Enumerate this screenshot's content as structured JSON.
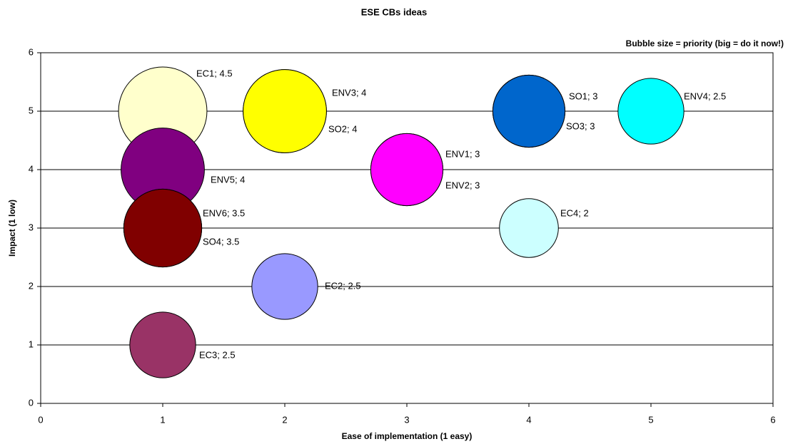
{
  "chart_data": {
    "type": "bubble",
    "title": "ESE CBs ideas",
    "annotation": "Bubble size = priority (big = do it now!)",
    "x_label": "Ease of implementation (1 easy)",
    "y_label": "Impact (1 low)",
    "xlim": [
      0,
      6
    ],
    "xticks": [
      0,
      1,
      2,
      3,
      4,
      5,
      6
    ],
    "ylim": [
      0,
      6
    ],
    "yticks": [
      0,
      1,
      2,
      3,
      4,
      5,
      6
    ],
    "grid": true,
    "series": [
      {
        "color": "#ffffcc",
        "x": [
          1
        ],
        "values": [
          5
        ],
        "sizes": [
          4.5
        ],
        "value_labels": [
          "EC1; 4.5"
        ]
      },
      {
        "color": "#ffff00",
        "x": [
          2
        ],
        "values": [
          5
        ],
        "sizes": [
          4
        ],
        "value_labels": [
          "SO2; 4"
        ]
      },
      {
        "color": "#ffff00",
        "x": [
          2
        ],
        "values": [
          5
        ],
        "sizes": [
          4
        ],
        "value_labels": [
          "ENV3; 4"
        ]
      },
      {
        "color": "#0066cc",
        "x": [
          4
        ],
        "values": [
          5
        ],
        "sizes": [
          3
        ],
        "value_labels": [
          "SO3; 3"
        ]
      },
      {
        "color": "#0066cc",
        "x": [
          4
        ],
        "values": [
          5
        ],
        "sizes": [
          3
        ],
        "value_labels": [
          "SO1; 3"
        ]
      },
      {
        "color": "#00ffff",
        "x": [
          5
        ],
        "values": [
          5
        ],
        "sizes": [
          2.5
        ],
        "value_labels": [
          "ENV4; 2.5"
        ]
      },
      {
        "color": "#ff00ff",
        "x": [
          3
        ],
        "values": [
          4
        ],
        "sizes": [
          3
        ],
        "value_labels": [
          "ENV2; 3"
        ]
      },
      {
        "color": "#ff00ff",
        "x": [
          3
        ],
        "values": [
          4
        ],
        "sizes": [
          3
        ],
        "value_labels": [
          "ENV1; 3"
        ]
      },
      {
        "color": "#800080",
        "x": [
          1
        ],
        "values": [
          4
        ],
        "sizes": [
          4
        ],
        "value_labels": [
          "ENV5; 4"
        ]
      },
      {
        "color": "#800000",
        "x": [
          1
        ],
        "values": [
          3
        ],
        "sizes": [
          3.5
        ],
        "value_labels": [
          "SO4; 3.5"
        ]
      },
      {
        "color": "#800000",
        "x": [
          1
        ],
        "values": [
          3
        ],
        "sizes": [
          3.5
        ],
        "value_labels": [
          "ENV6; 3.5"
        ]
      },
      {
        "color": "#ccffff",
        "x": [
          4
        ],
        "values": [
          3
        ],
        "sizes": [
          2
        ],
        "value_labels": [
          "EC4; 2"
        ]
      },
      {
        "color": "#9999ff",
        "x": [
          2
        ],
        "values": [
          2
        ],
        "sizes": [
          2.5
        ],
        "value_labels": [
          "EC2; 2.5"
        ]
      },
      {
        "color": "#993366",
        "x": [
          1
        ],
        "values": [
          1
        ],
        "sizes": [
          2.5
        ],
        "value_labels": [
          "EC3; 2.5"
        ]
      }
    ]
  }
}
